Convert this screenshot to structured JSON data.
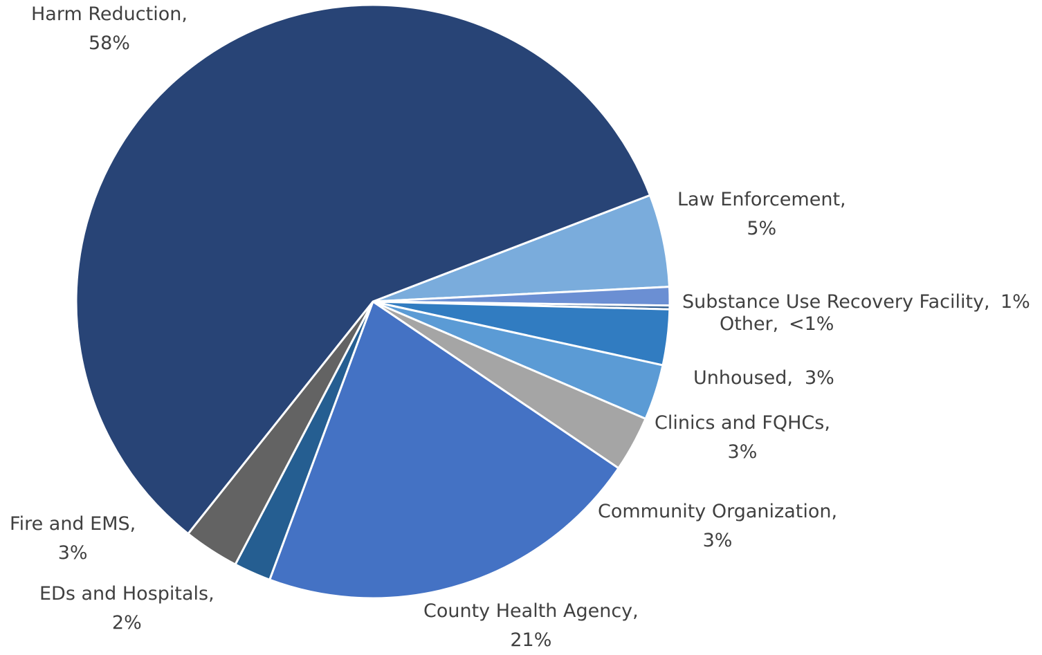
{
  "chart_data": {
    "type": "pie",
    "title": "",
    "slices": [
      {
        "label": "Harm Reduction",
        "value": 58,
        "value_label": "58%",
        "color": "#284476"
      },
      {
        "label": "Law Enforcement",
        "value": 5,
        "value_label": "5%",
        "color": "#7aacdc"
      },
      {
        "label": "Substance Use Recovery Facility",
        "value": 1,
        "value_label": "1%",
        "color": "#6b8fd3"
      },
      {
        "label": "Other",
        "value": 0.2,
        "value_label": "<1%",
        "color": "#2a5a8f"
      },
      {
        "label": "Unhoused",
        "value": 3,
        "value_label": "3%",
        "color": "#317cc1"
      },
      {
        "label": "Clinics and FQHCs",
        "value": 3,
        "value_label": "3%",
        "color": "#5b9bd5"
      },
      {
        "label": "Community Organization",
        "value": 3,
        "value_label": "3%",
        "color": "#a5a5a5"
      },
      {
        "label": "County Health Agency",
        "value": 21,
        "value_label": "21%",
        "color": "#4472c4"
      },
      {
        "label": "EDs and Hospitals",
        "value": 2,
        "value_label": "2%",
        "color": "#255e91"
      },
      {
        "label": "Fire and EMS",
        "value": 3,
        "value_label": "3%",
        "color": "#636363"
      }
    ]
  }
}
